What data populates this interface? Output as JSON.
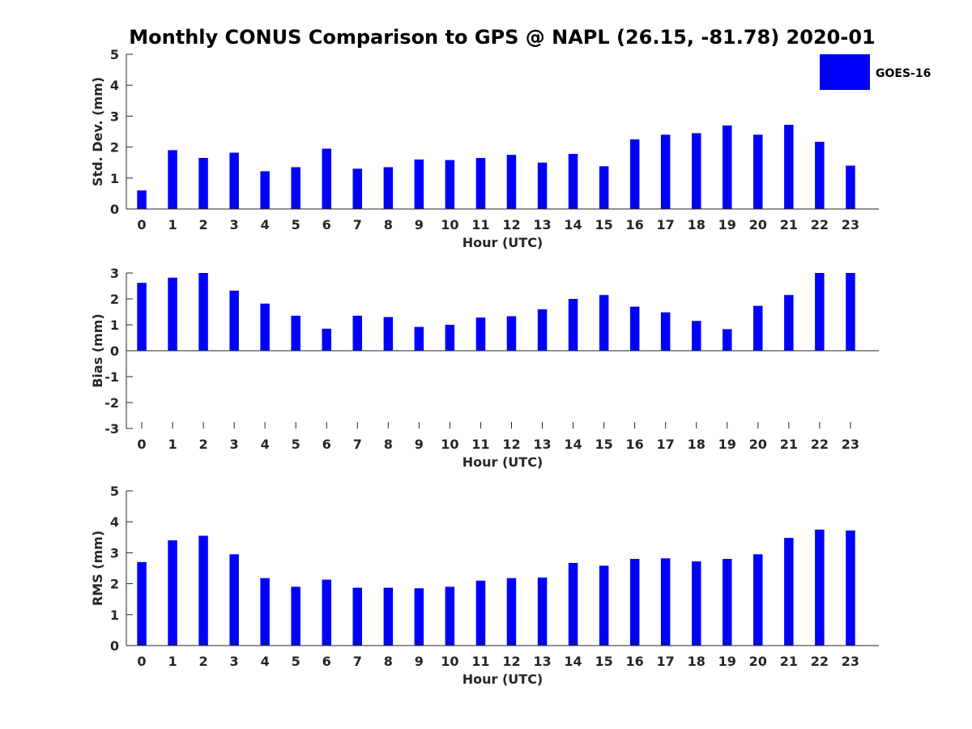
{
  "title": "Monthly CONUS Comparison to GPS @ NAPL (26.15, -81.78) 2020-01",
  "legend": {
    "label": "GOES-16",
    "placement": "top-right"
  },
  "colors": {
    "bar": "#0000ff",
    "axis": "#262626"
  },
  "chart_data": [
    {
      "type": "bar",
      "title": "Monthly CONUS Comparison to GPS @ NAPL (26.15, -81.78) 2020-01",
      "xlabel": "Hour (UTC)",
      "ylabel": "Std. Dev. (mm)",
      "ylim": [
        0,
        5
      ],
      "yticks": [
        0,
        1,
        2,
        3,
        4,
        5
      ],
      "grid": false,
      "categories": [
        "0",
        "1",
        "2",
        "3",
        "4",
        "5",
        "6",
        "7",
        "8",
        "9",
        "10",
        "11",
        "12",
        "13",
        "14",
        "15",
        "16",
        "17",
        "18",
        "19",
        "20",
        "21",
        "22",
        "23"
      ],
      "series": [
        {
          "name": "GOES-16",
          "values": [
            0.6,
            1.9,
            1.65,
            1.82,
            1.22,
            1.35,
            1.95,
            1.3,
            1.35,
            1.6,
            1.58,
            1.65,
            1.75,
            1.5,
            1.78,
            1.38,
            2.25,
            2.4,
            2.45,
            2.7,
            2.4,
            2.72,
            2.17,
            1.4
          ]
        }
      ]
    },
    {
      "type": "bar",
      "xlabel": "Hour (UTC)",
      "ylabel": "Bias (mm)",
      "ylim": [
        -3,
        3
      ],
      "yticks": [
        -3,
        -2,
        -1,
        0,
        1,
        2,
        3
      ],
      "grid": false,
      "categories": [
        "0",
        "1",
        "2",
        "3",
        "4",
        "5",
        "6",
        "7",
        "8",
        "9",
        "10",
        "11",
        "12",
        "13",
        "14",
        "15",
        "16",
        "17",
        "18",
        "19",
        "20",
        "21",
        "22",
        "23"
      ],
      "series": [
        {
          "name": "GOES-16",
          "values": [
            2.62,
            2.82,
            3.0,
            2.32,
            1.82,
            1.35,
            0.85,
            1.35,
            1.3,
            0.92,
            1.0,
            1.28,
            1.33,
            1.6,
            2.0,
            2.15,
            1.7,
            1.48,
            1.15,
            0.83,
            1.73,
            2.15,
            3.0,
            3.0
          ]
        }
      ]
    },
    {
      "type": "bar",
      "xlabel": "Hour (UTC)",
      "ylabel": "RMS (mm)",
      "ylim": [
        0,
        5
      ],
      "yticks": [
        0,
        1,
        2,
        3,
        4,
        5
      ],
      "grid": false,
      "categories": [
        "0",
        "1",
        "2",
        "3",
        "4",
        "5",
        "6",
        "7",
        "8",
        "9",
        "10",
        "11",
        "12",
        "13",
        "14",
        "15",
        "16",
        "17",
        "18",
        "19",
        "20",
        "21",
        "22",
        "23"
      ],
      "series": [
        {
          "name": "GOES-16",
          "values": [
            2.7,
            3.4,
            3.55,
            2.95,
            2.18,
            1.9,
            2.13,
            1.87,
            1.87,
            1.85,
            1.9,
            2.1,
            2.18,
            2.2,
            2.67,
            2.58,
            2.8,
            2.82,
            2.72,
            2.8,
            2.95,
            3.48,
            3.75,
            3.72
          ]
        }
      ]
    }
  ]
}
